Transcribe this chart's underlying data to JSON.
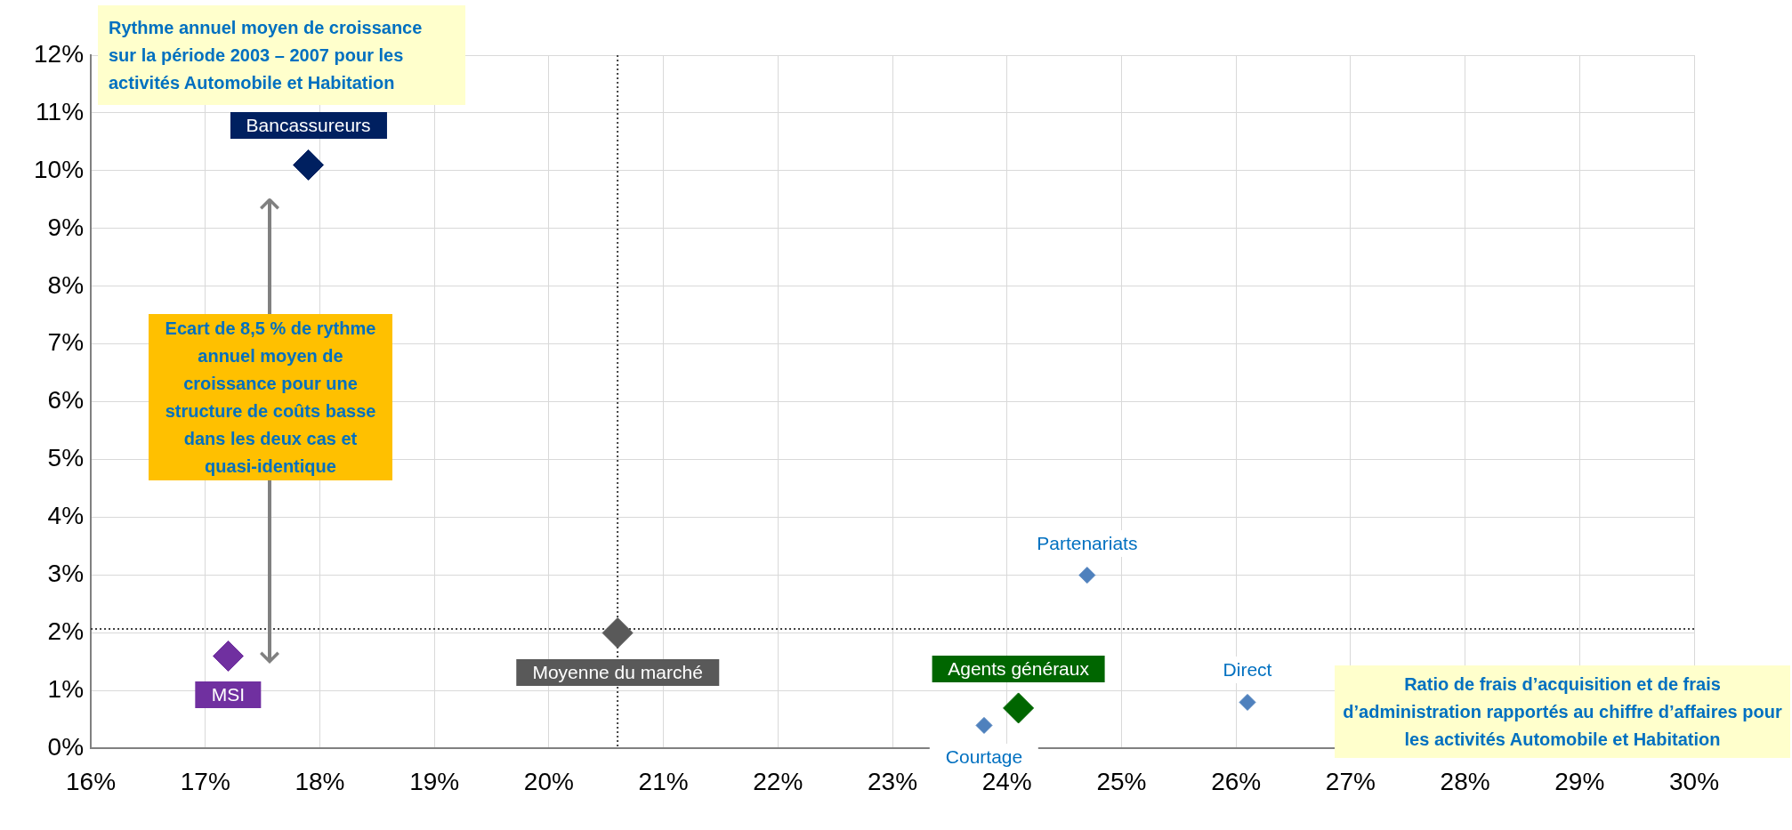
{
  "chart_data": {
    "type": "scatter",
    "ylabel": "Rythme annuel moyen de croissance sur la période 2003 – 2007 pour les activités Automobile et Habitation",
    "xlabel": "Ratio de frais d’acquisition et de frais d’administration rapportés au chiffre d’affaires pour les activités Automobile et Habitation",
    "annotations": [
      "Ecart de 8,5 % de rythme annuel moyen de croissance pour une structure de coûts basse dans les deux cas et quasi-identique"
    ],
    "series": [
      {
        "name": "Bancassureurs",
        "color": "#002060",
        "x": [
          17.9
        ],
        "values": [
          10.1
        ]
      },
      {
        "name": "MSI",
        "color": "#7030a0",
        "x": [
          17.2
        ],
        "values": [
          1.6
        ]
      },
      {
        "name": "Moyenne du marché",
        "color": "#595959",
        "x": [
          20.6
        ],
        "values": [
          2.0
        ]
      },
      {
        "name": "Partenariats",
        "color": "#4f81bd",
        "x": [
          24.7
        ],
        "values": [
          3.0
        ]
      },
      {
        "name": "Courtage",
        "color": "#4f81bd",
        "x": [
          23.8
        ],
        "values": [
          0.4
        ]
      },
      {
        "name": "Agents généraux",
        "color": "#006600",
        "x": [
          24.1
        ],
        "values": [
          0.7
        ]
      },
      {
        "name": "Direct",
        "color": "#4f81bd",
        "x": [
          26.1
        ],
        "values": [
          0.8
        ]
      }
    ],
    "ref_lines": [
      {
        "axis": "x",
        "value": 20.6,
        "color": "#404040",
        "line_style": "dotted"
      },
      {
        "axis": "y",
        "value": 2.07,
        "color": "#404040",
        "line_style": "dotted"
      }
    ],
    "xlim": [
      16,
      30
    ],
    "xticks": [
      {
        "value": 16,
        "label": "16%"
      },
      {
        "value": 17,
        "label": "17%"
      },
      {
        "value": 18,
        "label": "18%"
      },
      {
        "value": 19,
        "label": "19%"
      },
      {
        "value": 20,
        "label": "20%"
      },
      {
        "value": 21,
        "label": "21%"
      },
      {
        "value": 22,
        "label": "22%"
      },
      {
        "value": 23,
        "label": "23%"
      },
      {
        "value": 24,
        "label": "24%"
      },
      {
        "value": 25,
        "label": "25%"
      },
      {
        "value": 26,
        "label": "26%"
      },
      {
        "value": 27,
        "label": "27%"
      },
      {
        "value": 28,
        "label": "28%"
      },
      {
        "value": 29,
        "label": "29%"
      },
      {
        "value": 30,
        "label": "30%"
      }
    ],
    "ylim": [
      0,
      12
    ],
    "yticks": [
      {
        "value": 0,
        "label": "0%"
      },
      {
        "value": 1,
        "label": "1%"
      },
      {
        "value": 2,
        "label": "2%"
      },
      {
        "value": 3,
        "label": "3%"
      },
      {
        "value": 4,
        "label": "4%"
      },
      {
        "value": 5,
        "label": "5%"
      },
      {
        "value": 6,
        "label": "6%"
      },
      {
        "value": 7,
        "label": "7%"
      },
      {
        "value": 8,
        "label": "8%"
      },
      {
        "value": 9,
        "label": "9%"
      },
      {
        "value": 10,
        "label": "10%"
      },
      {
        "value": 11,
        "label": "11%"
      },
      {
        "value": 12,
        "label": "12%"
      }
    ],
    "grid": true,
    "legend": false,
    "marker": "diamond"
  }
}
